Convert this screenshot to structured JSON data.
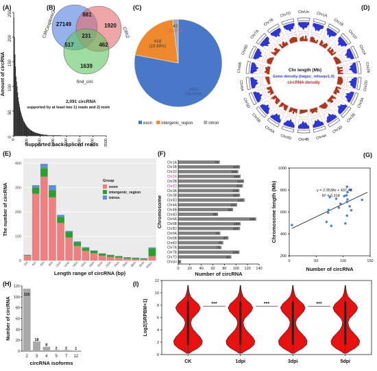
{
  "chart_data": [
    {
      "id": "A",
      "panel_label": "(A)",
      "type": "bar",
      "ylabel": "Amount of circRNA",
      "xlabel": "Supported back-spliced reads",
      "yticks": [
        0,
        50,
        100,
        150,
        200,
        250
      ],
      "xticks": [
        0,
        500,
        1000,
        1500,
        2000,
        2500,
        3000,
        3500
      ],
      "ylim": [
        0,
        250
      ],
      "xlim": [
        0,
        3500
      ],
      "x": [
        10,
        30,
        50,
        70,
        90,
        110,
        130,
        150,
        170,
        190,
        210,
        230,
        250,
        270,
        290,
        310,
        330,
        350,
        370,
        390,
        410,
        430,
        450,
        470,
        490,
        510,
        530,
        550,
        570,
        590,
        610,
        630,
        650,
        670,
        690,
        710,
        730,
        750,
        770,
        790,
        810,
        830,
        850,
        870,
        890,
        910,
        930,
        950,
        970,
        990,
        1010,
        1030,
        1050,
        1070,
        1090,
        1110,
        1130,
        1150,
        1170,
        1190,
        1210,
        1230,
        1250,
        1270,
        1290,
        1310,
        1330,
        1350,
        1370,
        1390,
        1410,
        1430,
        1450,
        1470,
        1490,
        1510,
        1530,
        1550,
        1570,
        1590,
        1610,
        1630,
        1650,
        1670,
        1690,
        1710,
        1730,
        1750,
        1770,
        1790
      ],
      "values": [
        240,
        200,
        165,
        140,
        120,
        110,
        100,
        88,
        78,
        70,
        64,
        58,
        52,
        48,
        44,
        40,
        37,
        34,
        31,
        29,
        27,
        25,
        23,
        21,
        20,
        18,
        17,
        16,
        15,
        14,
        13,
        12,
        11,
        11,
        10,
        9,
        9,
        8,
        8,
        7,
        7,
        6,
        6,
        6,
        5,
        5,
        5,
        4,
        4,
        4,
        4,
        3,
        3,
        3,
        3,
        3,
        2,
        2,
        2,
        2,
        2,
        2,
        2,
        2,
        1,
        1,
        1,
        1,
        1,
        1,
        1,
        1,
        1,
        1,
        1,
        1,
        1,
        1,
        1,
        1,
        1,
        1,
        1,
        1,
        1,
        1,
        1,
        1,
        1,
        1
      ],
      "annotation_line1": "2,091 circRNA",
      "annotation_line2": "supported by at least two 1) reads and 2) tools"
    },
    {
      "id": "B",
      "panel_label": "(B)",
      "type": "venn",
      "sets": [
        "CIRCexplorer2",
        "CIRI2",
        "find_circ"
      ],
      "regions": {
        "only_a": "27149",
        "only_b": "1920",
        "only_c": "1639",
        "ab": "881",
        "ac": "517",
        "bc": "462",
        "abc": "231"
      },
      "colors": [
        "#4f7fe0",
        "#e56b6b",
        "#5fc45f"
      ]
    },
    {
      "id": "C",
      "panel_label": "(C)",
      "type": "pie",
      "categories": [
        "exon",
        "intergenic_region",
        "intron"
      ],
      "values": [
        1631,
        418,
        42
      ],
      "labels": [
        "1631",
        "418",
        "42"
      ],
      "percents": [
        "(78.00%)",
        "(19.99%)",
        "(2.01%)"
      ],
      "colors": [
        "#4a78c8",
        "#ef8a2c",
        "#a9a9a9"
      ],
      "legend_position": "bottom"
    },
    {
      "id": "D",
      "panel_label": "(D)",
      "type": "circos",
      "chromosomes": [
        "ChrUn",
        "Chr1A",
        "Chr1B",
        "Chr1D",
        "Chr2A",
        "Chr2B",
        "Chr2D",
        "Chr3A",
        "Chr3B",
        "Chr3D",
        "Chr4A",
        "Chr4B",
        "Chr4D",
        "Chr5A",
        "Chr5B",
        "Chr5D",
        "Chr6A",
        "Chr6B",
        "Chr6D",
        "Chr7A",
        "Chr7B",
        "Chr7D"
      ],
      "legend_line1": "Chr length (Mb)",
      "legend_line2": "Gene density (iwgsc_refseqv1.0)",
      "legend_line3": "circRNA density",
      "colors": {
        "gene": "#2a36d8",
        "circ": "#b0361c",
        "ring": "#555555"
      }
    },
    {
      "id": "E",
      "panel_label": "(E)",
      "type": "bar",
      "stacked": true,
      "ylabel": "The number of circRNA",
      "xlabel": "Length range of circRNA (bp)",
      "categories": [
        "200",
        "400",
        "600",
        "800",
        "1000",
        "1200",
        "1400",
        "1600",
        "1800",
        "2000",
        "2200",
        "2400",
        "2600",
        "2800",
        "3000",
        "3000+"
      ],
      "yticks": [
        0,
        100,
        200,
        300,
        400
      ],
      "ylim": [
        0,
        420
      ],
      "series": [
        {
          "name": "exon",
          "values": [
            20,
            275,
            345,
            260,
            155,
            95,
            60,
            40,
            30,
            20,
            15,
            12,
            8,
            6,
            5,
            18
          ],
          "color": "#f08080"
        },
        {
          "name": "intergenic_region",
          "values": [
            3,
            25,
            35,
            30,
            25,
            22,
            15,
            12,
            10,
            9,
            8,
            6,
            5,
            5,
            4,
            32
          ],
          "color": "#2ca02c"
        },
        {
          "name": "intron",
          "values": [
            1,
            10,
            18,
            20,
            8,
            5,
            4,
            3,
            2,
            1,
            1,
            1,
            1,
            1,
            1,
            4
          ],
          "color": "#5b8fd9"
        }
      ],
      "legend_title": "Group",
      "legend_position": "right"
    },
    {
      "id": "F",
      "panel_label": "(F)",
      "type": "bar",
      "orientation": "horizontal",
      "ylabel": "Chromosome",
      "xlabel": "Number of circRNA",
      "categories": [
        "Chr1A",
        "Chr1B",
        "Chr1D",
        "Chr2A",
        "Chr2B",
        "Chr2D",
        "Chr3A",
        "Chr3B",
        "Chr3D",
        "Chr4A",
        "Chr4B",
        "Chr4D",
        "Chr5A",
        "Chr5B",
        "Chr5D",
        "Chr6A",
        "Chr6B",
        "Chr6D",
        "Chr7A",
        "Chr7B",
        "Chr7D",
        "ChrUn"
      ],
      "values": [
        72,
        107,
        104,
        108,
        114,
        112,
        106,
        107,
        115,
        102,
        95,
        69,
        135,
        108,
        107,
        73,
        87,
        78,
        75,
        106,
        92,
        5
      ],
      "value_labels": [
        "72",
        "107",
        "104",
        "108",
        "114",
        "112",
        "106",
        "107",
        "115",
        "102",
        "95",
        "69",
        "135",
        "108",
        "107",
        "73",
        "87",
        "78",
        "75",
        "106",
        "92",
        "5"
      ],
      "xticks": [
        0,
        20,
        40,
        60,
        80,
        100,
        120,
        140
      ],
      "xlim": [
        0,
        140
      ]
    },
    {
      "id": "G",
      "panel_label": "(G)",
      "type": "scatter",
      "xlabel": "Number of circRNA",
      "ylabel": "Chromosome length (Mb)",
      "xticks": [
        0,
        50,
        100,
        150
      ],
      "yticks": [
        200,
        400,
        600,
        800,
        1000
      ],
      "xlim": [
        0,
        150
      ],
      "ylim": [
        200,
        1000
      ],
      "x": [
        72,
        107,
        104,
        108,
        114,
        112,
        106,
        107,
        115,
        102,
        95,
        69,
        135,
        108,
        107,
        73,
        87,
        78,
        75,
        106,
        92,
        5
      ],
      "y": [
        594,
        690,
        495,
        780,
        801,
        651,
        751,
        830,
        615,
        744,
        674,
        509,
        710,
        713,
        566,
        618,
        720,
        473,
        736,
        750,
        638,
        480
      ],
      "equation": "y = 2.3538x + 437.46",
      "r2": "R² = 0.318",
      "fit": {
        "slope": 2.3538,
        "intercept": 437.46
      },
      "color": "#4d86d6"
    },
    {
      "id": "H",
      "panel_label": "(H)",
      "type": "bar",
      "ylabel": "Number of circRNA",
      "xlabel": "circRNA isoforms",
      "categories": [
        "2",
        "3",
        "4",
        "5",
        "7",
        "12"
      ],
      "values": [
        115,
        18,
        8,
        2,
        2,
        1
      ],
      "value_labels": [
        "115",
        "18",
        "8",
        "2",
        "2",
        "1"
      ],
      "yticks": [
        0,
        20,
        40,
        60,
        80,
        100,
        120
      ],
      "ylim": [
        0,
        120
      ]
    },
    {
      "id": "I",
      "panel_label": "(I)",
      "type": "violin",
      "ylabel": "Log2(SRPBM+1)",
      "categories": [
        "CK",
        "1dpi",
        "3dpi",
        "5dpi"
      ],
      "significance": [
        "***",
        "***",
        "***"
      ],
      "yticks": [
        0,
        2,
        4,
        6,
        8,
        10,
        12
      ],
      "ylim": [
        0,
        12
      ],
      "color": "#e8110f"
    }
  ]
}
